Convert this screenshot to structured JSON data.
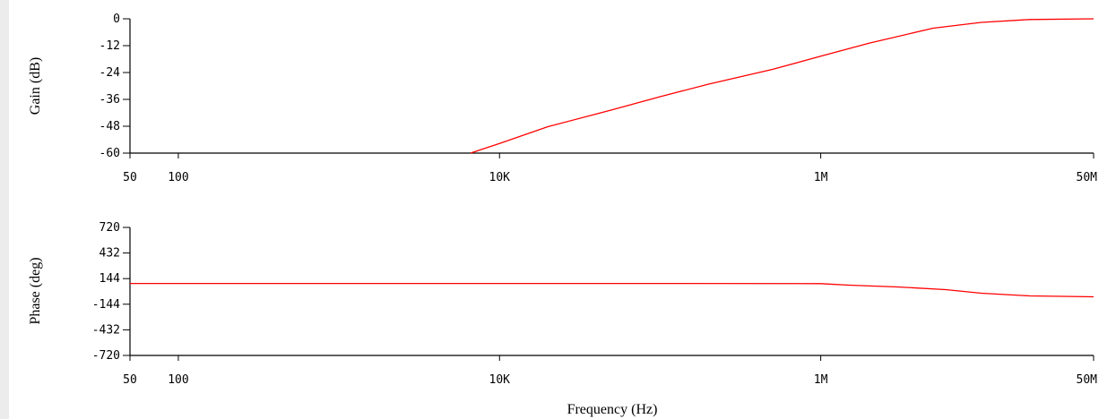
{
  "colors": {
    "trace": "#ff0000",
    "axis": "#000000",
    "background": "#ffffff"
  },
  "chart_data": [
    {
      "type": "line",
      "title": "",
      "xlabel": "",
      "ylabel": "Gain (dB)",
      "xscale": "log",
      "xlim": [
        50,
        50000000
      ],
      "ylim": [
        -60,
        0
      ],
      "grid": false,
      "x_ticks": [
        {
          "value": 50,
          "label": "50"
        },
        {
          "value": 100,
          "label": "100"
        },
        {
          "value": 10000,
          "label": "10K"
        },
        {
          "value": 1000000,
          "label": "1M"
        },
        {
          "value": 50000000,
          "label": "50M"
        }
      ],
      "y_ticks": [
        {
          "value": 0,
          "label": "0"
        },
        {
          "value": -12,
          "label": "-12"
        },
        {
          "value": -24,
          "label": "-24"
        },
        {
          "value": -36,
          "label": "-36"
        },
        {
          "value": -48,
          "label": "-48"
        },
        {
          "value": -60,
          "label": "-60"
        }
      ],
      "series": [
        {
          "x": [
            6600,
            10000,
            20000,
            50000,
            100000,
            200000,
            500000,
            1000000,
            2000000,
            5000000,
            10000000,
            20000000,
            50000000
          ],
          "y": [
            -60,
            -55.7,
            -48.2,
            -40.7,
            -34.8,
            -29.2,
            -22.6,
            -16.7,
            -10.9,
            -4.2,
            -1.6,
            -0.3,
            0
          ]
        }
      ]
    },
    {
      "type": "line",
      "title": "",
      "xlabel": "Frequency (Hz)",
      "ylabel": "Phase (deg)",
      "xscale": "log",
      "xlim": [
        50,
        50000000
      ],
      "ylim": [
        -720,
        720
      ],
      "grid": false,
      "x_ticks": [
        {
          "value": 50,
          "label": "50"
        },
        {
          "value": 100,
          "label": "100"
        },
        {
          "value": 10000,
          "label": "10K"
        },
        {
          "value": 1000000,
          "label": "1M"
        },
        {
          "value": 50000000,
          "label": "50M"
        }
      ],
      "y_ticks": [
        {
          "value": 720,
          "label": "720"
        },
        {
          "value": 432,
          "label": "432"
        },
        {
          "value": 144,
          "label": "144"
        },
        {
          "value": -144,
          "label": "-144"
        },
        {
          "value": -432,
          "label": "-432"
        },
        {
          "value": -720,
          "label": "-720"
        }
      ],
      "series": [
        {
          "x": [
            50,
            100000,
            1000000,
            1500000,
            3000000,
            6000000,
            10000000,
            20000000,
            50000000
          ],
          "y": [
            90,
            90,
            88,
            70,
            50,
            20,
            -20,
            -50,
            -60
          ]
        }
      ]
    }
  ]
}
